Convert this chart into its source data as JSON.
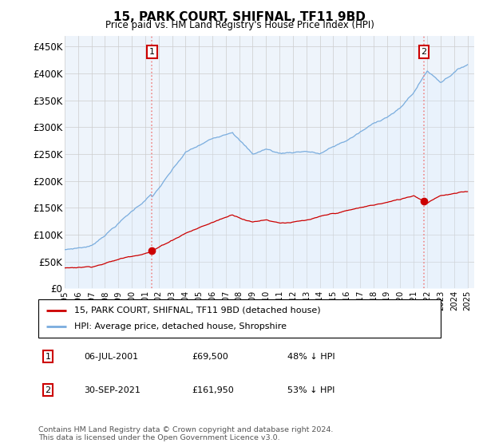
{
  "title": "15, PARK COURT, SHIFNAL, TF11 9BD",
  "subtitle": "Price paid vs. HM Land Registry's House Price Index (HPI)",
  "ylabel_ticks": [
    "£0",
    "£50K",
    "£100K",
    "£150K",
    "£200K",
    "£250K",
    "£300K",
    "£350K",
    "£400K",
    "£450K"
  ],
  "ytick_values": [
    0,
    50000,
    100000,
    150000,
    200000,
    250000,
    300000,
    350000,
    400000,
    450000
  ],
  "ylim": [
    0,
    470000
  ],
  "xlim": [
    1995,
    2025.5
  ],
  "hpi_color": "#7aadde",
  "hpi_fill_color": "#ddeeff",
  "price_color": "#cc0000",
  "vline_color": "#ee8888",
  "marker1_date_x": 2001.5,
  "marker1_price": 69500,
  "marker2_date_x": 2021.75,
  "marker2_price": 161950,
  "legend_label1": "15, PARK COURT, SHIFNAL, TF11 9BD (detached house)",
  "legend_label2": "HPI: Average price, detached house, Shropshire",
  "table_row1": [
    "1",
    "06-JUL-2001",
    "£69,500",
    "48% ↓ HPI"
  ],
  "table_row2": [
    "2",
    "30-SEP-2021",
    "£161,950",
    "53% ↓ HPI"
  ],
  "footnote": "Contains HM Land Registry data © Crown copyright and database right 2024.\nThis data is licensed under the Open Government Licence v3.0.",
  "background_color": "#ffffff",
  "grid_color": "#cccccc"
}
